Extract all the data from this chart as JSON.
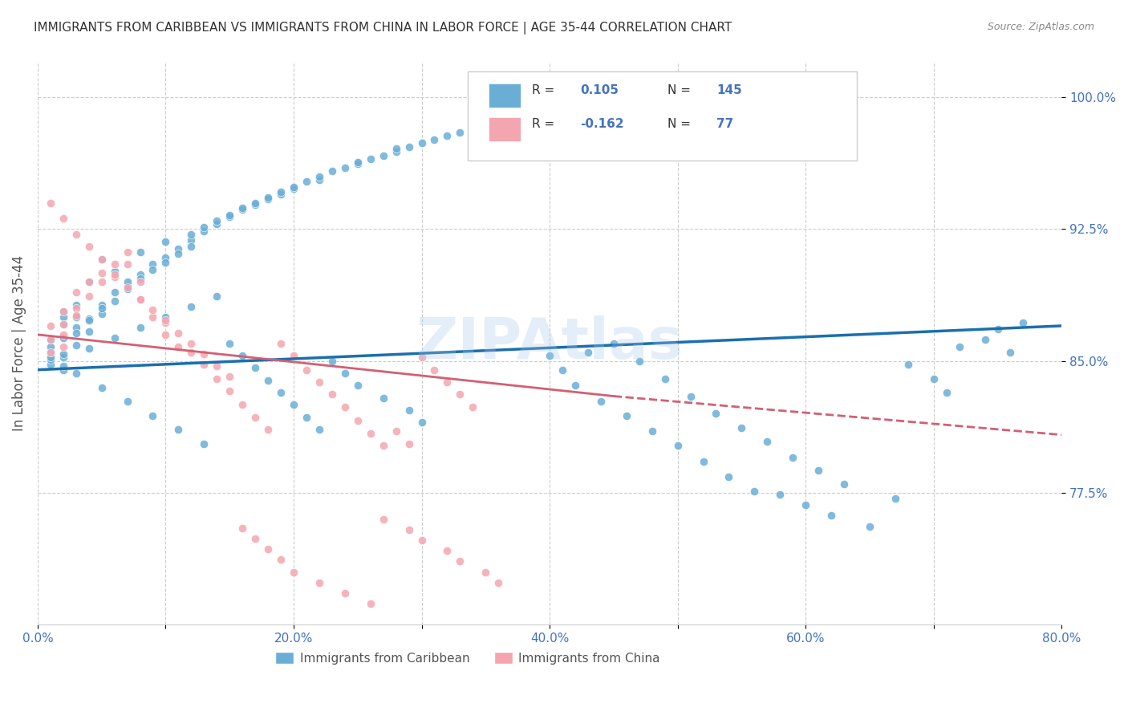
{
  "title": "IMMIGRANTS FROM CARIBBEAN VS IMMIGRANTS FROM CHINA IN LABOR FORCE | AGE 35-44 CORRELATION CHART",
  "source": "Source: ZipAtlas.com",
  "ylabel": "In Labor Force | Age 35-44",
  "xlim": [
    0.0,
    0.8
  ],
  "ylim": [
    0.7,
    1.02
  ],
  "xticks": [
    0.0,
    0.1,
    0.2,
    0.3,
    0.4,
    0.5,
    0.6,
    0.7,
    0.8
  ],
  "xticklabels": [
    "0.0%",
    "",
    "20.0%",
    "",
    "40.0%",
    "",
    "60.0%",
    "",
    "80.0%"
  ],
  "yticks": [
    0.775,
    0.85,
    0.925,
    1.0
  ],
  "yticklabels": [
    "77.5%",
    "85.0%",
    "92.5%",
    "100.0%"
  ],
  "blue_color": "#6aaed6",
  "pink_color": "#f4a6b0",
  "blue_line_color": "#1a6faf",
  "pink_line_color": "#d45f72",
  "watermark": "ZIPAtlas",
  "legend_R_blue": "0.105",
  "legend_N_blue": "145",
  "legend_R_pink": "-0.162",
  "legend_N_pink": "77",
  "grid_color": "#cccccc",
  "title_color": "#333333",
  "axis_label_color": "#4472c4",
  "blue_scatter_x": [
    0.01,
    0.01,
    0.01,
    0.01,
    0.01,
    0.02,
    0.02,
    0.02,
    0.02,
    0.02,
    0.02,
    0.02,
    0.03,
    0.03,
    0.03,
    0.03,
    0.03,
    0.04,
    0.04,
    0.04,
    0.04,
    0.05,
    0.05,
    0.05,
    0.05,
    0.06,
    0.06,
    0.06,
    0.07,
    0.07,
    0.07,
    0.08,
    0.08,
    0.08,
    0.09,
    0.09,
    0.1,
    0.1,
    0.1,
    0.11,
    0.11,
    0.12,
    0.12,
    0.12,
    0.13,
    0.13,
    0.14,
    0.14,
    0.15,
    0.15,
    0.16,
    0.16,
    0.17,
    0.17,
    0.18,
    0.18,
    0.19,
    0.19,
    0.2,
    0.2,
    0.21,
    0.22,
    0.22,
    0.23,
    0.24,
    0.25,
    0.25,
    0.26,
    0.27,
    0.28,
    0.28,
    0.29,
    0.3,
    0.31,
    0.32,
    0.33,
    0.34,
    0.35,
    0.36,
    0.37,
    0.38,
    0.39,
    0.4,
    0.41,
    0.42,
    0.43,
    0.44,
    0.45,
    0.46,
    0.47,
    0.48,
    0.49,
    0.5,
    0.51,
    0.52,
    0.53,
    0.54,
    0.55,
    0.56,
    0.57,
    0.58,
    0.59,
    0.6,
    0.61,
    0.62,
    0.63,
    0.65,
    0.67,
    0.68,
    0.7,
    0.71,
    0.72,
    0.74,
    0.75,
    0.76,
    0.77,
    0.01,
    0.02,
    0.03,
    0.04,
    0.05,
    0.06,
    0.07,
    0.08,
    0.09,
    0.1,
    0.11,
    0.12,
    0.13,
    0.14,
    0.15,
    0.16,
    0.17,
    0.18,
    0.19,
    0.2,
    0.21,
    0.22,
    0.23,
    0.24,
    0.25,
    0.27,
    0.29,
    0.3,
    0.32,
    0.34
  ],
  "blue_scatter_y": [
    0.855,
    0.848,
    0.862,
    0.851,
    0.858,
    0.871,
    0.845,
    0.852,
    0.863,
    0.878,
    0.854,
    0.847,
    0.869,
    0.875,
    0.859,
    0.882,
    0.866,
    0.874,
    0.895,
    0.867,
    0.873,
    0.882,
    0.877,
    0.88,
    0.908,
    0.889,
    0.884,
    0.901,
    0.893,
    0.895,
    0.891,
    0.899,
    0.897,
    0.912,
    0.905,
    0.902,
    0.909,
    0.906,
    0.918,
    0.914,
    0.911,
    0.919,
    0.915,
    0.922,
    0.924,
    0.926,
    0.928,
    0.93,
    0.932,
    0.933,
    0.936,
    0.937,
    0.939,
    0.94,
    0.942,
    0.943,
    0.945,
    0.946,
    0.948,
    0.949,
    0.952,
    0.953,
    0.955,
    0.958,
    0.96,
    0.962,
    0.963,
    0.965,
    0.967,
    0.969,
    0.971,
    0.972,
    0.974,
    0.976,
    0.978,
    0.98,
    0.982,
    0.983,
    0.985,
    0.987,
    0.988,
    0.99,
    0.853,
    0.845,
    0.836,
    0.855,
    0.827,
    0.86,
    0.819,
    0.85,
    0.81,
    0.84,
    0.802,
    0.83,
    0.793,
    0.82,
    0.784,
    0.812,
    0.776,
    0.804,
    0.774,
    0.795,
    0.768,
    0.788,
    0.762,
    0.78,
    0.756,
    0.772,
    0.848,
    0.84,
    0.832,
    0.858,
    0.862,
    0.868,
    0.855,
    0.872,
    0.852,
    0.875,
    0.843,
    0.857,
    0.835,
    0.863,
    0.827,
    0.869,
    0.819,
    0.875,
    0.811,
    0.881,
    0.803,
    0.887,
    0.86,
    0.853,
    0.846,
    0.839,
    0.832,
    0.825,
    0.818,
    0.811,
    0.85,
    0.843,
    0.836,
    0.829,
    0.822,
    0.815
  ],
  "pink_scatter_x": [
    0.01,
    0.01,
    0.01,
    0.02,
    0.02,
    0.02,
    0.02,
    0.03,
    0.03,
    0.03,
    0.04,
    0.04,
    0.05,
    0.05,
    0.06,
    0.06,
    0.07,
    0.07,
    0.08,
    0.08,
    0.09,
    0.1,
    0.1,
    0.11,
    0.12,
    0.13,
    0.14,
    0.15,
    0.16,
    0.17,
    0.18,
    0.19,
    0.2,
    0.21,
    0.22,
    0.23,
    0.24,
    0.25,
    0.26,
    0.27,
    0.28,
    0.29,
    0.3,
    0.31,
    0.32,
    0.33,
    0.34,
    0.01,
    0.02,
    0.03,
    0.04,
    0.05,
    0.06,
    0.07,
    0.08,
    0.09,
    0.1,
    0.11,
    0.12,
    0.13,
    0.14,
    0.15,
    0.16,
    0.17,
    0.18,
    0.19,
    0.2,
    0.22,
    0.24,
    0.26,
    0.27,
    0.29,
    0.3,
    0.32,
    0.33,
    0.35,
    0.36
  ],
  "pink_scatter_y": [
    0.862,
    0.87,
    0.855,
    0.878,
    0.865,
    0.858,
    0.871,
    0.88,
    0.876,
    0.889,
    0.887,
    0.895,
    0.9,
    0.895,
    0.905,
    0.898,
    0.912,
    0.905,
    0.895,
    0.885,
    0.875,
    0.872,
    0.865,
    0.858,
    0.855,
    0.848,
    0.84,
    0.833,
    0.825,
    0.818,
    0.811,
    0.86,
    0.853,
    0.845,
    0.838,
    0.831,
    0.824,
    0.816,
    0.809,
    0.802,
    0.81,
    0.803,
    0.852,
    0.845,
    0.838,
    0.831,
    0.824,
    0.94,
    0.931,
    0.922,
    0.915,
    0.908,
    0.899,
    0.892,
    0.885,
    0.879,
    0.873,
    0.866,
    0.86,
    0.854,
    0.847,
    0.841,
    0.755,
    0.749,
    0.743,
    0.737,
    0.73,
    0.724,
    0.718,
    0.712,
    0.76,
    0.754,
    0.748,
    0.742,
    0.736,
    0.73,
    0.724
  ]
}
